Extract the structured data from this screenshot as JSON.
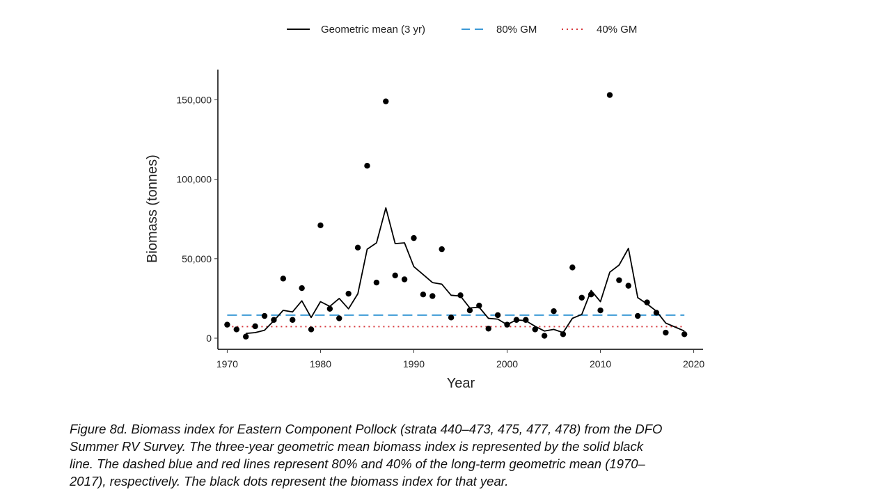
{
  "chart_data": {
    "type": "line",
    "xlabel": "Year",
    "ylabel": "Biomass (tonnes)",
    "xlim": [
      1969,
      2021
    ],
    "ylim": [
      -7000,
      169000
    ],
    "x_ticks": [
      1970,
      1980,
      1990,
      2000,
      2010,
      2020
    ],
    "y_ticks": [
      0,
      50000,
      100000,
      150000
    ],
    "y_tick_labels": [
      "0",
      "50,000",
      "100,000",
      "150,000"
    ],
    "grid": false,
    "legend_position": "top",
    "colors": {
      "gm_line": "#000000",
      "gm80": "#3b99d6",
      "gm40": "#d7363b",
      "points": "#000000"
    },
    "series": [
      {
        "name": "Geometric mean (3 yr)",
        "style": "solid",
        "x": [
          1972,
          1973,
          1974,
          1975,
          1976,
          1977,
          1978,
          1979,
          1980,
          1981,
          1982,
          1983,
          1984,
          1985,
          1986,
          1987,
          1988,
          1989,
          1990,
          1991,
          1992,
          1993,
          1994,
          1995,
          1996,
          1997,
          1998,
          1999,
          2000,
          2001,
          2002,
          2003,
          2004,
          2005,
          2006,
          2007,
          2008,
          2009,
          2010,
          2011,
          2012,
          2013,
          2014,
          2015,
          2016,
          2017,
          2018,
          2019
        ],
        "y": [
          3000,
          3500,
          5000,
          11000,
          17500,
          16500,
          23500,
          13000,
          23000,
          20000,
          25000,
          18500,
          28000,
          56000,
          60000,
          82000,
          59500,
          60000,
          45000,
          40000,
          35000,
          34000,
          27000,
          26500,
          19000,
          19500,
          12500,
          12000,
          8500,
          11500,
          11000,
          7500,
          4500,
          5500,
          3500,
          12500,
          15000,
          30000,
          23000,
          41500,
          46000,
          56500,
          25500,
          21500,
          17000,
          9500,
          7000,
          4500
        ]
      },
      {
        "name": "Biomass index",
        "style": "points",
        "x": [
          1970,
          1971,
          1972,
          1973,
          1974,
          1975,
          1976,
          1977,
          1978,
          1979,
          1980,
          1981,
          1982,
          1983,
          1984,
          1985,
          1986,
          1987,
          1988,
          1989,
          1990,
          1991,
          1992,
          1993,
          1994,
          1995,
          1996,
          1997,
          1998,
          1999,
          2000,
          2001,
          2002,
          2003,
          2004,
          2005,
          2006,
          2007,
          2008,
          2009,
          2010,
          2011,
          2012,
          2013,
          2014,
          2015,
          2016,
          2017,
          2018,
          2019
        ],
        "y": [
          8500,
          5500,
          1000,
          7500,
          14000,
          11500,
          37500,
          11500,
          31500,
          5500,
          71000,
          18500,
          12500,
          28000,
          57000,
          108500,
          35000,
          149000,
          39500,
          37000,
          63000,
          27500,
          26500,
          56000,
          13000,
          27000,
          17500,
          20500,
          6000,
          14500,
          8500,
          11500,
          11500,
          5500,
          1500,
          17000,
          2500,
          44500,
          25500,
          27500,
          17500,
          153000,
          36500,
          33000,
          14000,
          22500,
          16000,
          3500,
          null,
          2500
        ]
      },
      {
        "name": "80% GM",
        "style": "dashed",
        "x": [
          1970,
          2019
        ],
        "y": [
          14500,
          14500
        ]
      },
      {
        "name": "40% GM",
        "style": "dotted",
        "x": [
          1970,
          2019
        ],
        "y": [
          7300,
          7300
        ]
      }
    ]
  },
  "caption": {
    "lines": [
      "Figure 8d. Biomass index for Eastern Component Pollock (strata 440–473, 475, 477, 478) from the DFO",
      "Summer RV Survey.  The three-year geometric mean biomass index is represented by the solid black",
      "line.  The dashed blue and red lines represent 80% and 40% of the long-term geometric mean (1970–",
      "2017), respectively.  The black dots represent the biomass index for that year."
    ]
  }
}
